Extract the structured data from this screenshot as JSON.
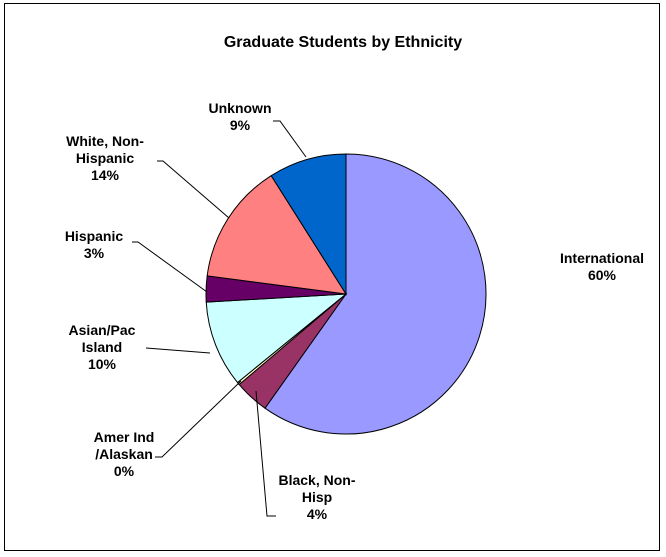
{
  "chart_data": {
    "type": "pie",
    "title": "Graduate Students by Ethnicity",
    "slices": [
      {
        "label": [
          "International",
          "60%"
        ],
        "value": 60,
        "color": "#9999FF"
      },
      {
        "label": [
          "Black, Non-",
          "Hisp",
          "4%"
        ],
        "value": 4,
        "color": "#993366"
      },
      {
        "label": [
          "Amer Ind",
          "/Alaskan",
          "0%"
        ],
        "value": 0.3,
        "color": "#FFFFCC"
      },
      {
        "label": [
          "Asian/Pac",
          "Island",
          "10%"
        ],
        "value": 10,
        "color": "#CCFFFF"
      },
      {
        "label": [
          "Hispanic",
          "3%"
        ],
        "value": 3,
        "color": "#660066"
      },
      {
        "label": [
          "White, Non-",
          "Hispanic",
          "14%"
        ],
        "value": 14,
        "color": "#FF8080"
      },
      {
        "label": [
          "Unknown",
          "9%"
        ],
        "value": 9,
        "color": "#0066CC"
      }
    ],
    "legend": "none",
    "start_angle_deg": 0,
    "direction": "clockwise"
  }
}
